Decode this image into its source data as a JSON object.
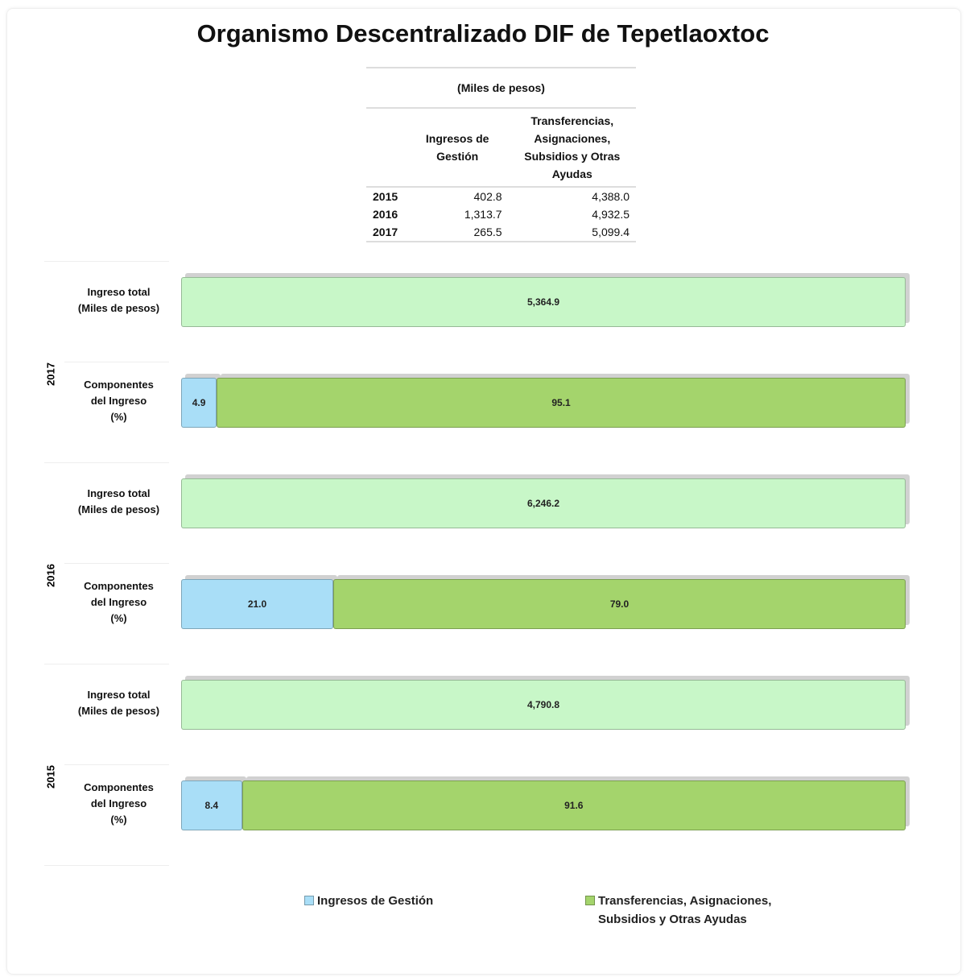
{
  "chart_data": {
    "type": "bar",
    "orientation": "horizontal",
    "stacked": true,
    "title": "Organismo Descentralizado DIF de Tepetlaoxtoc",
    "categories": [
      "2017",
      "2016",
      "2015"
    ],
    "row_labels": [
      "Ingreso total\n(Miles de pesos)",
      "Componentes\ndel Ingreso\n(%)"
    ],
    "total": {
      "color": "#c8f7c8",
      "values": [
        5364.9,
        6246.2,
        4790.8
      ],
      "value_labels": [
        "5,364.9",
        "6,246.2",
        "4,790.8"
      ]
    },
    "series": [
      {
        "name": "Ingresos de Gestión",
        "color": "#a9def7",
        "values": [
          4.9,
          21.0,
          8.4
        ],
        "value_labels": [
          "4.9",
          "21.0",
          "8.4"
        ]
      },
      {
        "name": "Transferencias, Asignaciones, Subsidios y Otras Ayudas",
        "color": "#a4d46c",
        "values": [
          95.1,
          79.0,
          91.6
        ],
        "value_labels": [
          "95.1",
          "79.0",
          "91.6"
        ]
      }
    ],
    "legend": "bottom"
  },
  "table": {
    "caption": "(Miles de pesos)",
    "columns": [
      "Ingresos de Gestión",
      "Transferencias, Asignaciones, Subsidios y Otras Ayudas"
    ],
    "rows": [
      [
        "2015",
        "402.8",
        "4,388.0"
      ],
      [
        "2016",
        "1,313.7",
        "4,932.5"
      ],
      [
        "2017",
        "265.5",
        "5,099.4"
      ]
    ]
  }
}
